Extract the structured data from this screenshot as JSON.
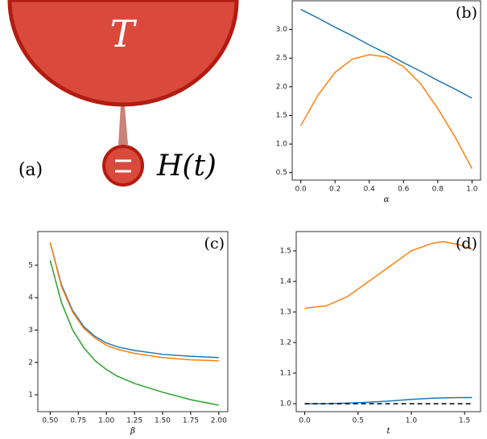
{
  "diagram": {
    "label": "(a)",
    "top": "T",
    "bottom": "H(t)"
  },
  "chart_data": [
    {
      "type": "line",
      "annotation": "(b)",
      "xlabel": "α",
      "x": [
        0,
        0.1,
        0.2,
        0.3,
        0.4,
        0.5,
        0.6,
        0.7,
        0.8,
        0.9,
        1.0
      ],
      "series": [
        {
          "color": "#1f77b4",
          "values": [
            3.35,
            3.2,
            3.04,
            2.89,
            2.73,
            2.58,
            2.42,
            2.27,
            2.11,
            1.96,
            1.8
          ]
        },
        {
          "color": "#ff7f0e",
          "values": [
            1.32,
            1.85,
            2.25,
            2.48,
            2.56,
            2.52,
            2.35,
            2.05,
            1.62,
            1.13,
            0.57
          ]
        }
      ],
      "xlim": [
        -0.05,
        1.05
      ],
      "ylim": [
        0.37,
        3.5
      ],
      "xticks": [
        {
          "value": 0,
          "label": "0.0"
        },
        0.2,
        0.4,
        0.6,
        0.8,
        {
          "value": 1,
          "label": "1.0"
        }
      ],
      "yticks": [
        0.5,
        {
          "value": 1,
          "label": "1.0"
        },
        1.5,
        {
          "value": 2,
          "label": "2.0"
        },
        2.5,
        {
          "value": 3,
          "label": "3.0"
        }
      ]
    },
    {
      "type": "line",
      "annotation": "(c)",
      "xlabel": "β",
      "x": [
        0.5,
        0.6,
        0.7,
        0.8,
        0.9,
        1.0,
        1.1,
        1.25,
        1.5,
        1.75,
        2.0
      ],
      "series": [
        {
          "color": "#1f77b4",
          "values": [
            5.7,
            4.4,
            3.6,
            3.1,
            2.8,
            2.6,
            2.48,
            2.37,
            2.25,
            2.19,
            2.15
          ]
        },
        {
          "color": "#ff7f0e",
          "values": [
            5.7,
            4.35,
            3.55,
            3.05,
            2.75,
            2.53,
            2.4,
            2.28,
            2.15,
            2.08,
            2.05
          ]
        },
        {
          "color": "#2ca02c",
          "values": [
            5.15,
            3.85,
            3.0,
            2.45,
            2.05,
            1.78,
            1.57,
            1.35,
            1.08,
            0.85,
            0.68
          ]
        }
      ],
      "xlim": [
        0.39,
        2.08
      ],
      "ylim": [
        0.48,
        6.04
      ],
      "xticks": [
        {
          "value": 0.5,
          "label": "0.50"
        },
        0.75,
        {
          "value": 1,
          "label": "1.00"
        },
        1.25,
        {
          "value": 1.5,
          "label": "1.50"
        },
        1.75,
        {
          "value": 2,
          "label": "2.00"
        }
      ],
      "yticks": [
        1,
        2,
        3,
        4,
        5
      ]
    },
    {
      "type": "line",
      "annotation": "(d)",
      "xlabel": "t",
      "x": [
        0,
        0.2,
        0.4,
        0.6,
        0.8,
        1.0,
        1.2,
        1.3,
        1.45,
        1.57
      ],
      "series": [
        {
          "color": "#1f77b4",
          "values": [
            1.0,
            1.0,
            1.002,
            1.005,
            1.009,
            1.014,
            1.018,
            1.019,
            1.02,
            1.02
          ]
        },
        {
          "color": "#ff7f0e",
          "values": [
            1.312,
            1.32,
            1.35,
            1.4,
            1.45,
            1.5,
            1.525,
            1.53,
            1.52,
            1.505
          ]
        },
        {
          "color": "#000000",
          "linestyle": "dashed",
          "values": [
            1.0,
            1.0,
            1.0,
            1.0,
            1.0,
            1.0,
            1.0,
            1.0,
            1.0,
            1.0
          ]
        }
      ],
      "xlim": [
        -0.08,
        1.65
      ],
      "ylim": [
        0.974,
        1.563
      ],
      "xticks": [
        {
          "value": 0,
          "label": "0.0"
        },
        0.5,
        {
          "value": 1,
          "label": "1.0"
        },
        1.5
      ],
      "yticks": [
        {
          "value": 1,
          "label": "1.0"
        },
        1.1,
        1.2,
        1.3,
        1.4,
        1.5
      ]
    }
  ]
}
